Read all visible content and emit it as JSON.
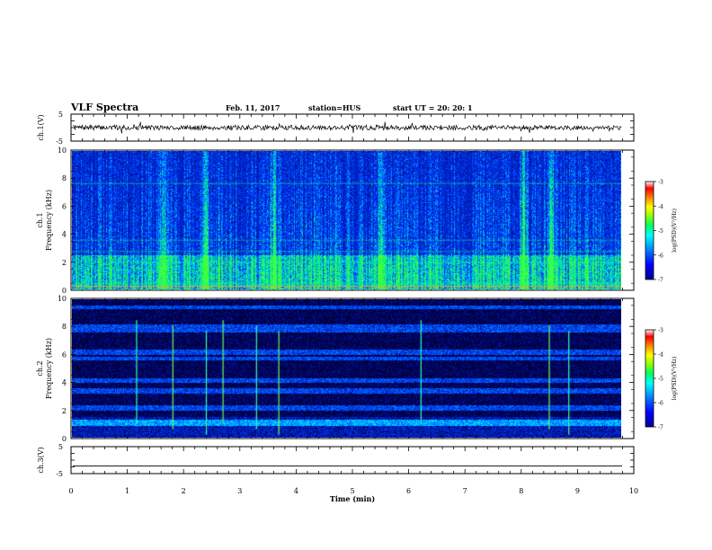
{
  "header": {
    "title": "VLF Spectra",
    "date": "Feb. 11, 2017",
    "station": "station=HUS",
    "start": "start  UT =   20: 20: 1"
  },
  "chart_data": [
    {
      "type": "line",
      "panel": "ch1-waveform",
      "ylabel": "ch.1(V)",
      "ylim": [
        -5,
        5
      ],
      "yticks": [
        "5",
        "-5"
      ],
      "xlim": [
        0,
        10
      ],
      "trace_level": 0,
      "trace_amplitude": 0.3
    },
    {
      "type": "heatmap",
      "panel": "ch1-spectrogram",
      "ylabel": "ch.1\nFrequency (kHz)",
      "ylabel_lines": [
        "ch.1",
        "Frequency (kHz)"
      ],
      "ylim": [
        0,
        10
      ],
      "yticks": [
        "0",
        "2",
        "4",
        "6",
        "8",
        "10"
      ],
      "xlim": [
        0,
        9.85
      ],
      "colorbar": {
        "label": "log(PSD)(V²/Hz)",
        "range": [
          -7,
          -3
        ],
        "ticks": [
          "-3",
          "-4",
          "-5",
          "-6",
          "-7"
        ]
      },
      "bright_bursts_min": [
        1.65,
        2.4,
        3.62,
        5.55,
        8.1,
        8.6
      ]
    },
    {
      "type": "heatmap",
      "panel": "ch2-spectrogram",
      "ylabel": "ch.2\nFrequency (kHz)",
      "ylabel_lines": [
        "ch.2",
        "Frequency (kHz)"
      ],
      "ylim": [
        0,
        10
      ],
      "yticks": [
        "0",
        "2",
        "4",
        "6",
        "8",
        "10"
      ],
      "xlim": [
        0,
        9.85
      ],
      "colorbar": {
        "label": "log(PSD)(V²/Hz)",
        "range": [
          -7,
          -3
        ],
        "ticks": [
          "-3",
          "-4",
          "-5",
          "-6",
          "-7"
        ]
      },
      "bands_khz": [
        [
          0.9,
          1.3
        ],
        [
          2.0,
          2.4
        ],
        [
          3.2,
          3.6
        ],
        [
          4.0,
          4.3
        ],
        [
          5.6,
          5.9
        ],
        [
          6.0,
          6.4
        ],
        [
          7.6,
          8.2
        ],
        [
          9.3,
          9.6
        ]
      ],
      "spike_times_min": [
        1.15,
        1.8,
        2.4,
        2.7,
        3.3,
        3.7,
        6.25,
        8.55,
        8.9
      ]
    },
    {
      "type": "line",
      "panel": "ch3-waveform",
      "ylabel": "ch.3(V)",
      "ylim": [
        -5,
        5
      ],
      "yticks": [
        "5",
        "-5"
      ],
      "xlim": [
        0,
        10
      ],
      "trace_level": -2.2
    }
  ],
  "xaxis": {
    "label": "Time (min)",
    "ticks": [
      "0",
      "1",
      "2",
      "3",
      "4",
      "5",
      "6",
      "7",
      "8",
      "9",
      "10"
    ]
  },
  "colormap": [
    "#00007f",
    "#0000ff",
    "#0080ff",
    "#00ffff",
    "#00ff80",
    "#80ff00",
    "#ffff00",
    "#ff8000",
    "#ff0000",
    "#ffffff"
  ]
}
